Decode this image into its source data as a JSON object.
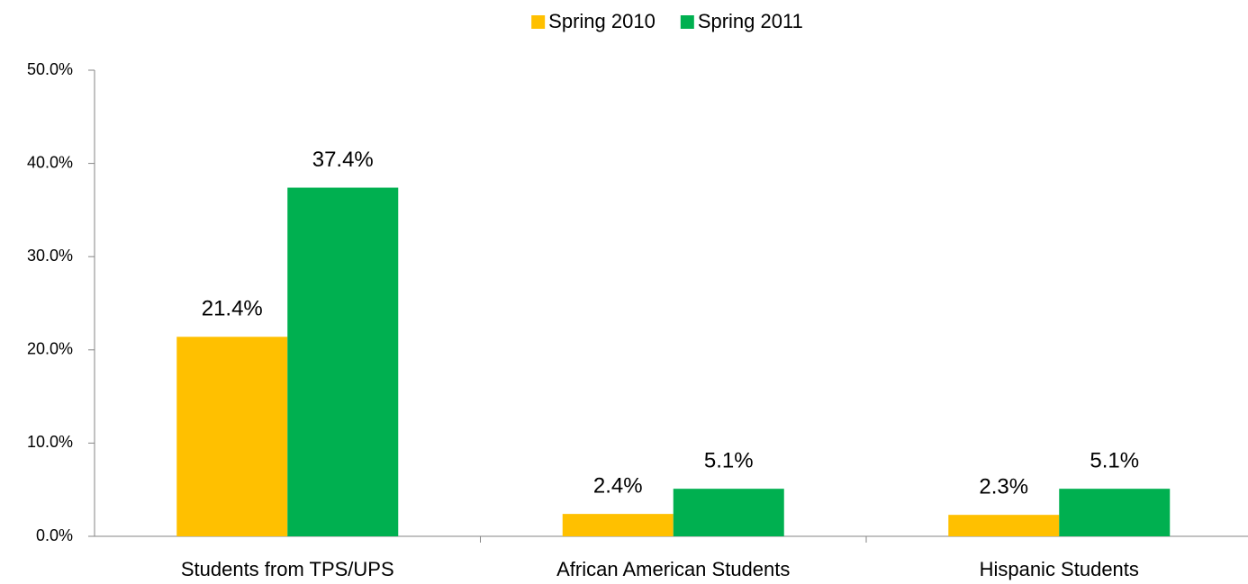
{
  "chart_data": {
    "type": "bar",
    "categories": [
      "Students from TPS/UPS",
      "African American Students",
      "Hispanic Students"
    ],
    "series": [
      {
        "name": "Spring 2010",
        "color": "#ffc000",
        "values": [
          21.4,
          2.4,
          2.3
        ],
        "value_labels": [
          "21.4%",
          "2.4%",
          "2.3%"
        ]
      },
      {
        "name": "Spring 2011",
        "color": "#00b050",
        "values": [
          37.4,
          5.1,
          5.1
        ],
        "value_labels": [
          "37.4%",
          "5.1%",
          "5.1%"
        ]
      }
    ],
    "ylim": [
      0,
      50
    ],
    "yticks": [
      {
        "value": 0,
        "label": "0.0%"
      },
      {
        "value": 10,
        "label": "10.0%"
      },
      {
        "value": 20,
        "label": "20.0%"
      },
      {
        "value": 30,
        "label": "30.0%"
      },
      {
        "value": 40,
        "label": "40.0%"
      },
      {
        "value": 50,
        "label": "50.0%"
      }
    ],
    "legend": "top"
  }
}
